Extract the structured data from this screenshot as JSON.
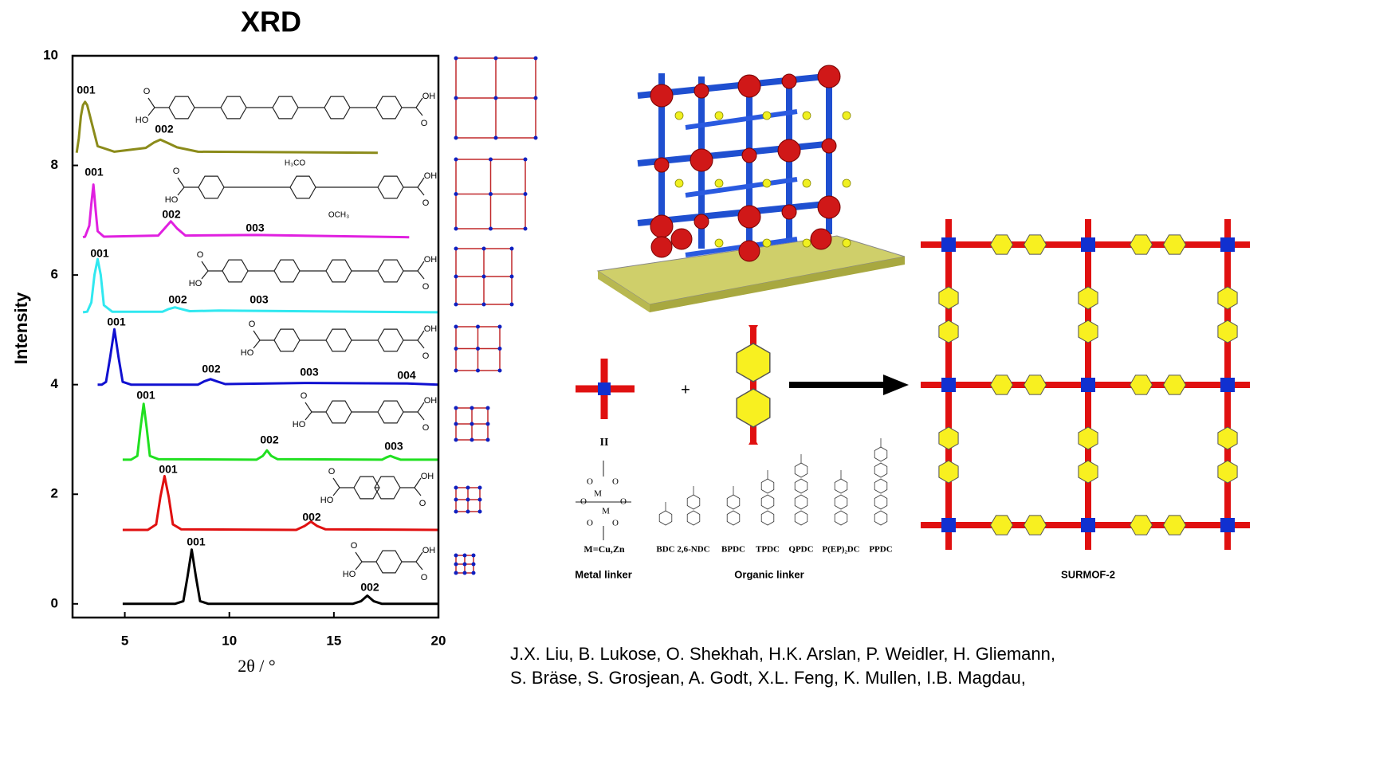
{
  "chart_data": {
    "type": "line",
    "title": "XRD",
    "xlabel": "2θ / °",
    "ylabel": "Intensity",
    "xlim": [
      2.5,
      20
    ],
    "ylim": [
      -0.25,
      10
    ],
    "xticks": [
      5,
      10,
      15,
      20
    ],
    "yticks": [
      0,
      2,
      4,
      6,
      8,
      10
    ],
    "grid": false,
    "series": [
      {
        "color": "#000000",
        "x": [
          4.9,
          7.4,
          7.8,
          8.0,
          8.2,
          8.4,
          8.6,
          9.0,
          15.9,
          16.3,
          16.6,
          16.9,
          17.3,
          20
        ],
        "values": [
          0,
          0,
          0.05,
          0.5,
          0.99,
          0.5,
          0.05,
          0,
          0,
          0.05,
          0.15,
          0.05,
          0,
          0
        ]
      },
      {
        "color": "#e01010",
        "x": [
          4.9,
          6.1,
          6.5,
          6.7,
          6.9,
          7.1,
          7.3,
          7.7,
          13.2,
          13.6,
          13.9,
          14.2,
          14.6,
          20
        ],
        "values": [
          1.35,
          1.35,
          1.45,
          1.95,
          2.33,
          1.95,
          1.45,
          1.36,
          1.35,
          1.42,
          1.5,
          1.42,
          1.36,
          1.35
        ]
      },
      {
        "color": "#20e020",
        "x": [
          4.9,
          5.3,
          5.6,
          5.75,
          5.9,
          6.05,
          6.2,
          6.6,
          11.3,
          11.6,
          11.8,
          12.0,
          12.3,
          17.3,
          17.5,
          17.7,
          17.9,
          18.2,
          20
        ],
        "values": [
          2.63,
          2.63,
          2.7,
          3.2,
          3.65,
          3.2,
          2.7,
          2.64,
          2.63,
          2.7,
          2.8,
          2.7,
          2.64,
          2.63,
          2.67,
          2.7,
          2.67,
          2.63,
          2.63
        ]
      },
      {
        "color": "#1010d0",
        "x": [
          3.7,
          3.9,
          4.1,
          4.3,
          4.5,
          4.7,
          4.9,
          5.3,
          8.5,
          8.8,
          9.1,
          9.4,
          9.8,
          13.8,
          18.5,
          20
        ],
        "values": [
          4.0,
          4.0,
          4.05,
          4.5,
          5.01,
          4.5,
          4.05,
          4.0,
          4.0,
          4.06,
          4.1,
          4.06,
          4.01,
          4.03,
          4.02,
          4.0
        ]
      },
      {
        "color": "#30e8f0",
        "x": [
          3.0,
          3.2,
          3.4,
          3.55,
          3.7,
          3.85,
          4.0,
          4.4,
          6.8,
          7.1,
          7.4,
          7.7,
          8.1,
          9.5,
          20
        ],
        "values": [
          5.32,
          5.33,
          5.5,
          6.0,
          6.29,
          6.0,
          5.45,
          5.33,
          5.33,
          5.38,
          5.41,
          5.38,
          5.34,
          5.35,
          5.32
        ]
      },
      {
        "color": "#e020e0",
        "x": [
          3.0,
          3.1,
          3.3,
          3.4,
          3.5,
          3.6,
          3.7,
          4.0,
          6.6,
          6.9,
          7.2,
          7.5,
          7.9,
          11.3,
          18.6
        ],
        "values": [
          6.69,
          6.7,
          6.9,
          7.3,
          7.65,
          7.2,
          6.8,
          6.7,
          6.72,
          6.85,
          6.98,
          6.85,
          6.72,
          6.73,
          6.69
        ]
      },
      {
        "color": "#8b8b1a",
        "x": [
          2.7,
          2.8,
          2.9,
          3.0,
          3.1,
          3.2,
          3.4,
          3.7,
          4.5,
          6.0,
          6.4,
          6.7,
          7.0,
          7.5,
          8.5,
          17.1
        ],
        "values": [
          8.23,
          8.5,
          8.9,
          9.1,
          9.16,
          9.1,
          8.8,
          8.35,
          8.25,
          8.32,
          8.42,
          8.47,
          8.42,
          8.33,
          8.25,
          8.23
        ]
      }
    ],
    "annotations": [
      "001",
      "002",
      "001",
      "002",
      "003",
      "001",
      "002",
      "003",
      "001",
      "002",
      "003",
      "004",
      "001",
      "002",
      "003",
      "001",
      "002",
      "001",
      "002"
    ]
  },
  "molecule_labels": {
    "oh": "OH",
    "ho": "HO",
    "o": "O",
    "h3co": "H₃CO",
    "och3": "OCH₃"
  },
  "diagram": {
    "plus": "+",
    "equals": "II",
    "metal_formula": "M=Cu,Zn",
    "paddle": {
      "m": "M",
      "o": "O"
    },
    "linker_names": [
      "BDC",
      "2,6-NDC",
      "BPDC",
      "TPDC",
      "QPDC",
      "P(EP)₂DC",
      "PPDC"
    ],
    "metal_linker": "Metal linker",
    "organic_linker": "Organic linker",
    "product": "SURMOF-2"
  },
  "citation": [
    "J.X. Liu, B. Lukose, O. Shekhah, H.K. Arslan, P. Weidler, H. Gliemann,",
    "S. Bräse, S. Grosjean, A. Godt, X.L. Feng, K. Mullen, I.B. Magdau,"
  ]
}
